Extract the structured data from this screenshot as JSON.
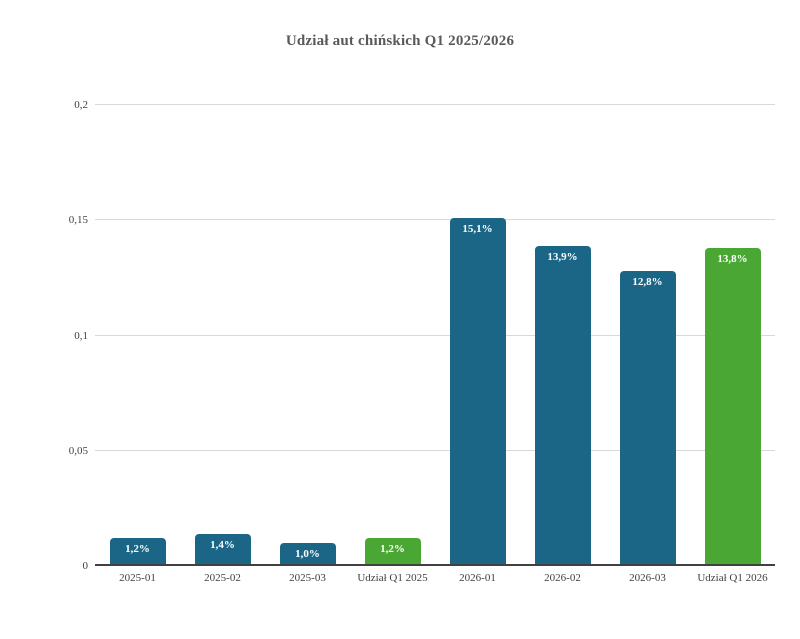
{
  "chart_data": {
    "type": "bar",
    "title": "Udział aut chińskich Q1 2025/2026",
    "categories": [
      "2025-01",
      "2025-02",
      "2025-03",
      "Udział Q1 2025",
      "2026-01",
      "2026-02",
      "2026-03",
      "Udział Q1 2026"
    ],
    "values": [
      0.012,
      0.014,
      0.01,
      0.012,
      0.151,
      0.139,
      0.128,
      0.138
    ],
    "value_labels": [
      "1,2%",
      "1,4%",
      "1,0%",
      "1,2%",
      "15,1%",
      "13,9%",
      "12,8%",
      "13,8%"
    ],
    "bar_colors": [
      "#1B6687",
      "#1B6687",
      "#1B6687",
      "#4AA733",
      "#1B6687",
      "#1B6687",
      "#1B6687",
      "#4AA733"
    ],
    "xlabel": "",
    "ylabel": "",
    "ylim": [
      0,
      0.2
    ],
    "yticks": [
      0,
      0.05,
      0.1,
      0.15,
      0.2
    ],
    "ytick_labels": [
      "0",
      "0,05",
      "0,1",
      "0,15",
      "0,2"
    ],
    "grid": true,
    "legend": false
  },
  "colors": {
    "bar_blue": "#1B6687",
    "bar_green": "#4AA733",
    "gridline": "#D9D9D9",
    "axis_line": "#404040",
    "title_text": "#595959",
    "axis_text": "#3F3F3F",
    "bar_label_text": "#FFFFFF",
    "background": "#FFFFFF"
  }
}
